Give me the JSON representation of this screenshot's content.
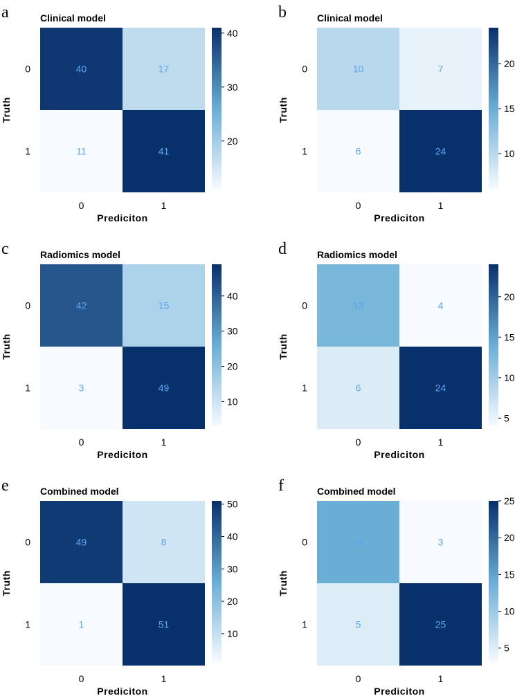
{
  "colormap": {
    "low": "#f7fbff",
    "mid": "#6aaed6",
    "high": "#08306b"
  },
  "cell_text_color": "#5aa5ee",
  "chart_data": [
    {
      "type": "heatmap",
      "panel": "a",
      "title": "Clinical model",
      "xlabel": "Prediciton",
      "ylabel": "Truth",
      "x_ticks": [
        "0",
        "1"
      ],
      "y_ticks": [
        "0",
        "1"
      ],
      "values": [
        [
          40,
          17
        ],
        [
          11,
          41
        ]
      ],
      "colorbar": {
        "ticks": [
          20,
          30,
          40
        ]
      }
    },
    {
      "type": "heatmap",
      "panel": "b",
      "title": "Clinical model",
      "xlabel": "Prediciton",
      "ylabel": "Truth",
      "x_ticks": [
        "0",
        "1"
      ],
      "y_ticks": [
        "0",
        "1"
      ],
      "values": [
        [
          10,
          7
        ],
        [
          6,
          24
        ]
      ],
      "colorbar": {
        "ticks": [
          10,
          15,
          20
        ]
      }
    },
    {
      "type": "heatmap",
      "panel": "c",
      "title": "Radiomics model",
      "xlabel": "Prediciton",
      "ylabel": "Truth",
      "x_ticks": [
        "0",
        "1"
      ],
      "y_ticks": [
        "0",
        "1"
      ],
      "values": [
        [
          42,
          15
        ],
        [
          3,
          49
        ]
      ],
      "colorbar": {
        "ticks": [
          10,
          20,
          30,
          40
        ]
      }
    },
    {
      "type": "heatmap",
      "panel": "d",
      "title": "Radiomics model",
      "xlabel": "Prediciton",
      "ylabel": "Truth",
      "x_ticks": [
        "0",
        "1"
      ],
      "y_ticks": [
        "0",
        "1"
      ],
      "values": [
        [
          13,
          4
        ],
        [
          6,
          24
        ]
      ],
      "colorbar": {
        "ticks": [
          5,
          10,
          15,
          20
        ]
      }
    },
    {
      "type": "heatmap",
      "panel": "e",
      "title": "Combined model",
      "xlabel": "Prediciton",
      "ylabel": "Truth",
      "x_ticks": [
        "0",
        "1"
      ],
      "y_ticks": [
        "0",
        "1"
      ],
      "values": [
        [
          49,
          8
        ],
        [
          1,
          51
        ]
      ],
      "colorbar": {
        "ticks": [
          10,
          20,
          30,
          40,
          50
        ]
      }
    },
    {
      "type": "heatmap",
      "panel": "f",
      "title": "Combined model",
      "xlabel": "Prediciton",
      "ylabel": "Truth",
      "x_ticks": [
        "0",
        "1"
      ],
      "y_ticks": [
        "0",
        "1"
      ],
      "values": [
        [
          14,
          3
        ],
        [
          5,
          25
        ]
      ],
      "colorbar": {
        "ticks": [
          5,
          10,
          15,
          20,
          25
        ]
      }
    }
  ]
}
